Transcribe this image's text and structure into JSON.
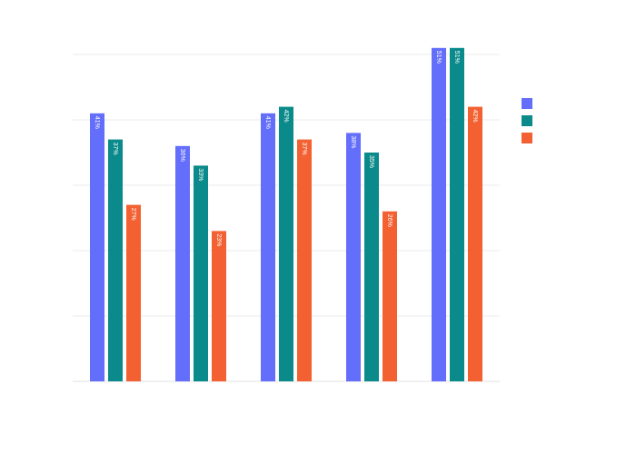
{
  "chart_data": {
    "type": "bar",
    "categories": [
      "",
      "",
      "",
      "",
      ""
    ],
    "series": [
      {
        "color": "#636efa",
        "values": [
          41,
          36,
          41,
          38,
          51
        ],
        "labels": [
          "41%",
          "36%",
          "41%",
          "38%",
          "51%"
        ]
      },
      {
        "color": "#0a8a8a",
        "values": [
          37,
          33,
          42,
          35,
          51
        ],
        "labels": [
          "37%",
          "33%",
          "42%",
          "35%",
          "51%"
        ]
      },
      {
        "color": "#f36132",
        "values": [
          27,
          23,
          37,
          26,
          42
        ],
        "labels": [
          "27%",
          "23%",
          "37%",
          "26%",
          "42%"
        ]
      }
    ],
    "ylim": [
      0,
      50
    ],
    "grid": true,
    "legend": "top-right",
    "title": "",
    "xlabel": "",
    "ylabel": ""
  }
}
